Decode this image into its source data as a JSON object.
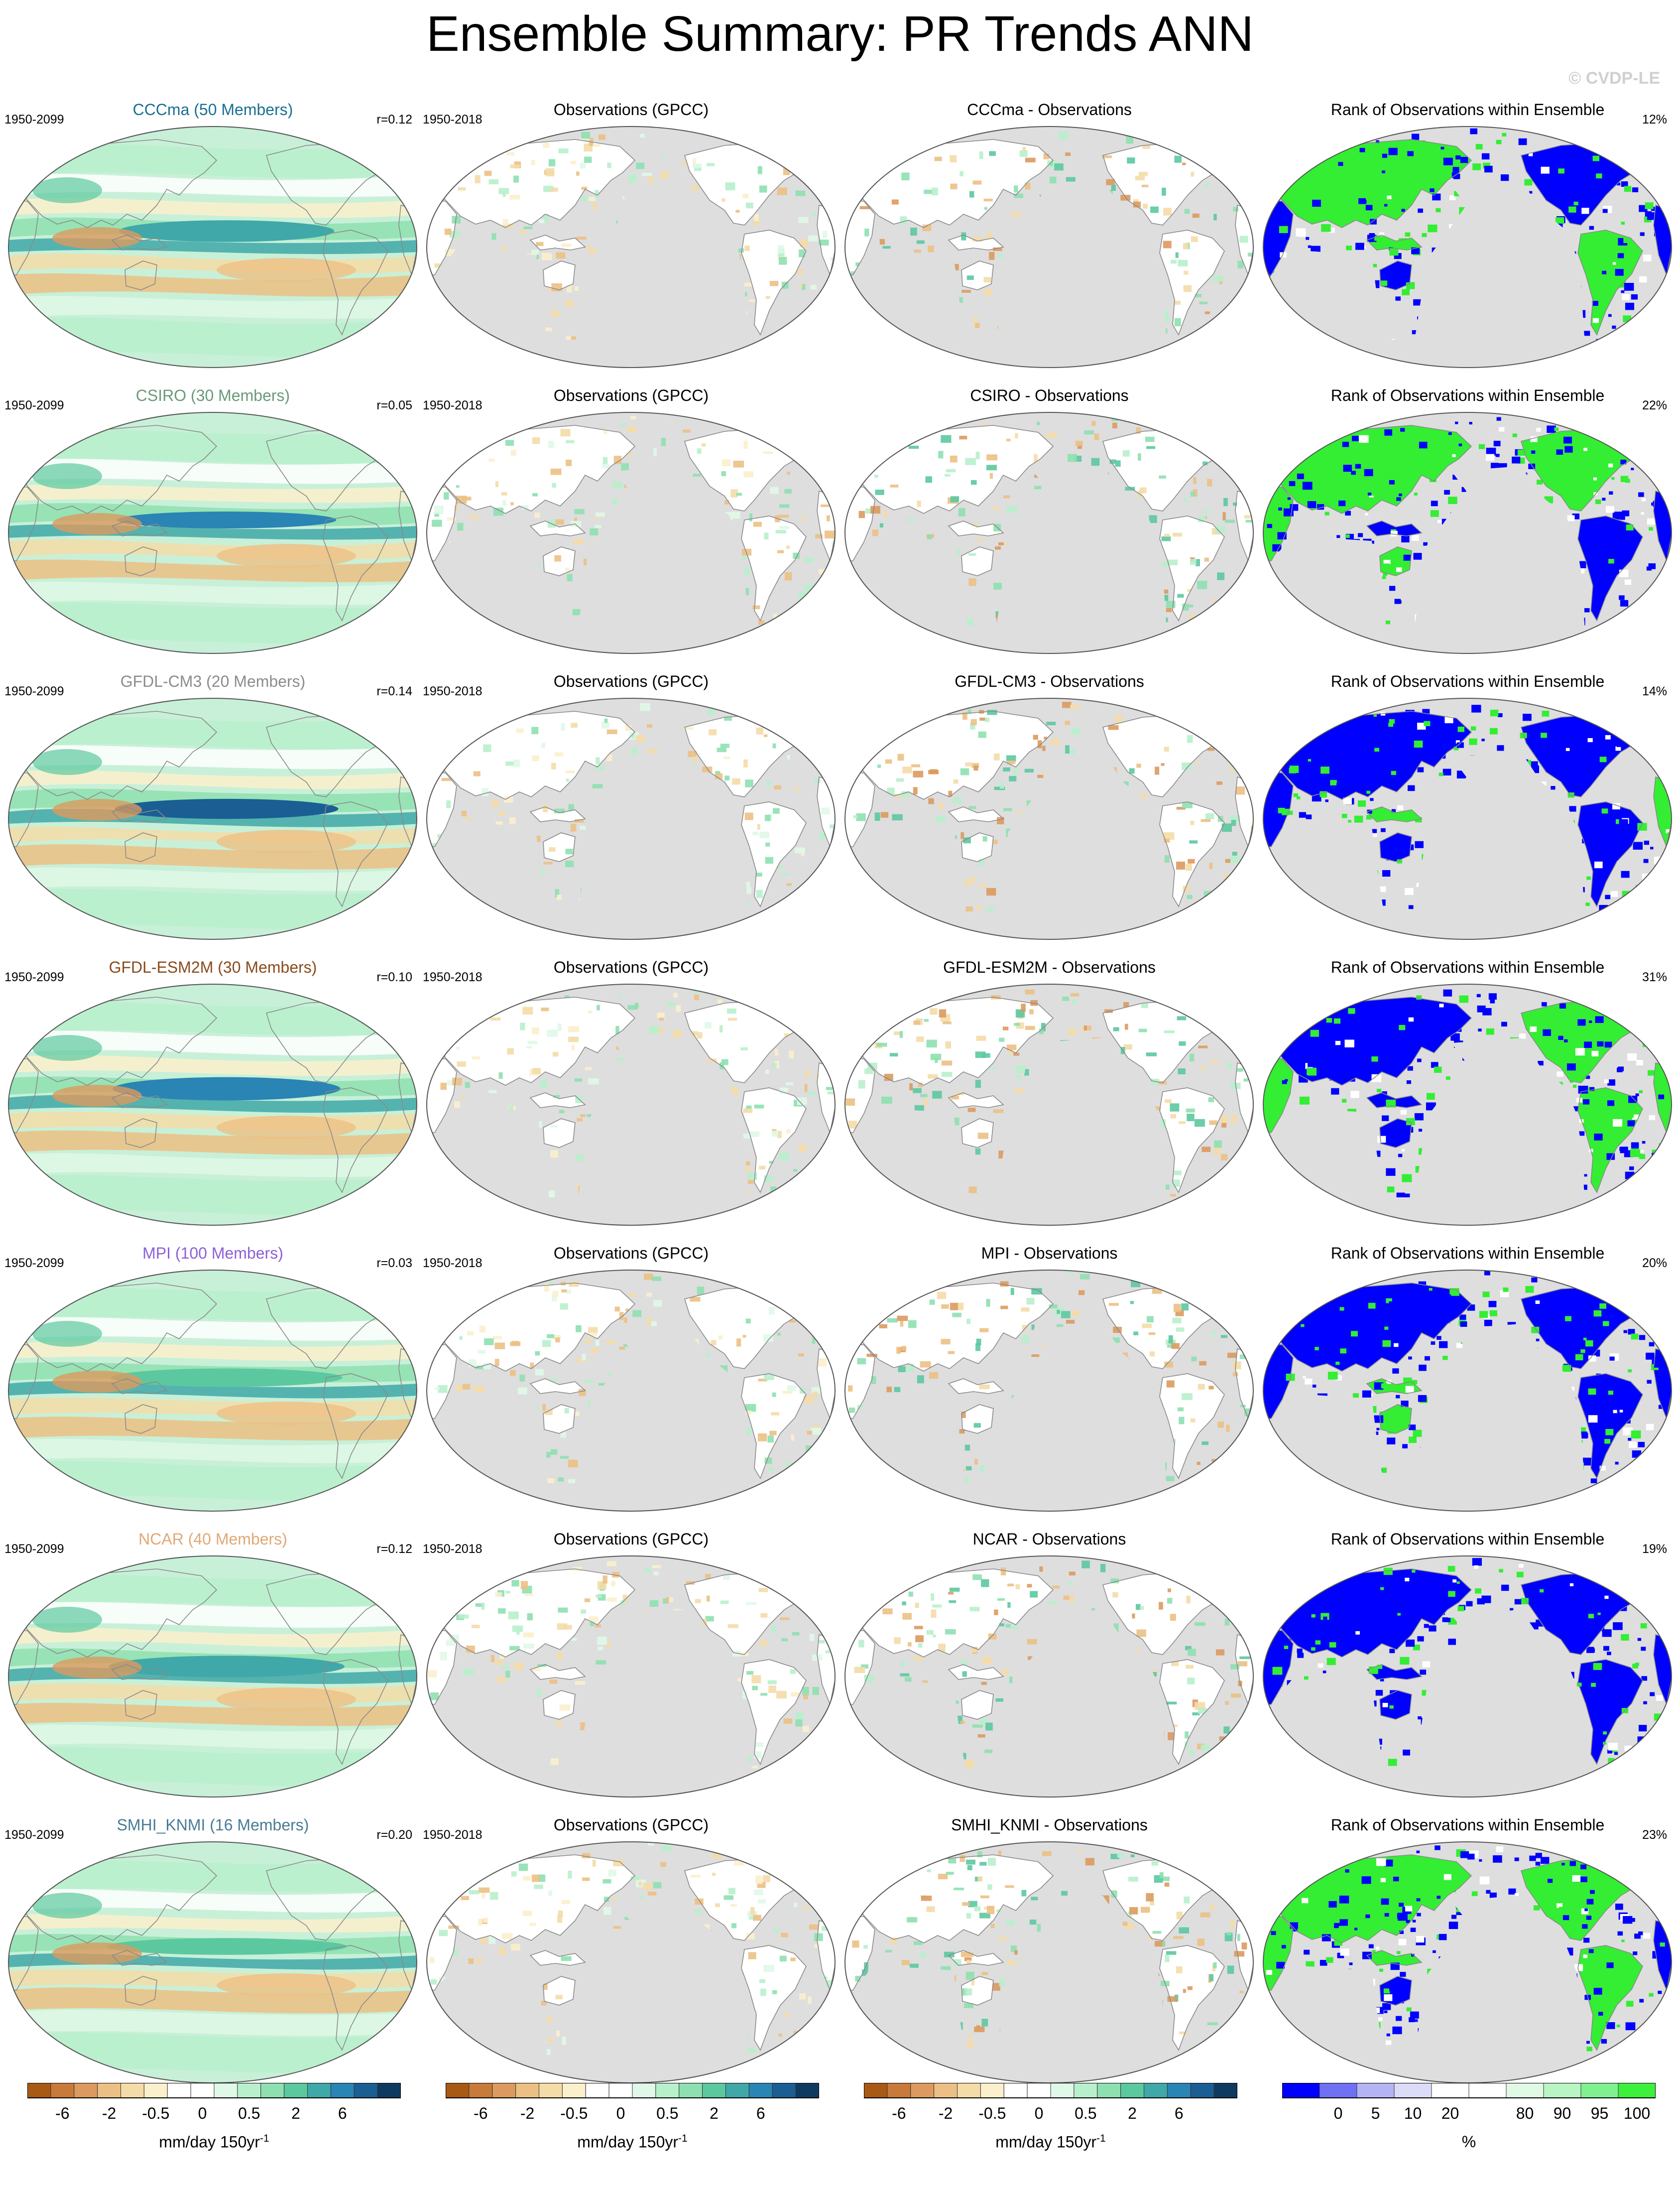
{
  "title": "Ensemble Summary: PR Trends ANN",
  "watermark": "© CVDP-LE",
  "rows": [
    {
      "model": "CCCma (50 Members)",
      "model_color": "#1a6f94",
      "left_period": "1950-2099",
      "corr": "r=0.12",
      "obs_period": "1950-2018",
      "obs_title": "Observations (GPCC)",
      "diff_title": "CCCma - Observations",
      "rank_title": "Rank of Observations within Ensemble",
      "rank_pct": "12%"
    },
    {
      "model": "CSIRO (30 Members)",
      "model_color": "#6a9a78",
      "left_period": "1950-2099",
      "corr": "r=0.05",
      "obs_period": "1950-2018",
      "obs_title": "Observations (GPCC)",
      "diff_title": "CSIRO - Observations",
      "rank_title": "Rank of Observations within Ensemble",
      "rank_pct": "22%"
    },
    {
      "model": "GFDL-CM3 (20 Members)",
      "model_color": "#8c8c8c",
      "left_period": "1950-2099",
      "corr": "r=0.14",
      "obs_period": "1950-2018",
      "obs_title": "Observations (GPCC)",
      "diff_title": "GFDL-CM3 - Observations",
      "rank_title": "Rank of Observations within Ensemble",
      "rank_pct": "14%"
    },
    {
      "model": "GFDL-ESM2M (30 Members)",
      "model_color": "#8a4a1c",
      "left_period": "1950-2099",
      "corr": "r=0.10",
      "obs_period": "1950-2018",
      "obs_title": "Observations (GPCC)",
      "diff_title": "GFDL-ESM2M - Observations",
      "rank_title": "Rank of Observations within Ensemble",
      "rank_pct": "31%"
    },
    {
      "model": "MPI (100 Members)",
      "model_color": "#8c60d8",
      "left_period": "1950-2099",
      "corr": "r=0.03",
      "obs_period": "1950-2018",
      "obs_title": "Observations (GPCC)",
      "diff_title": "MPI - Observations",
      "rank_title": "Rank of Observations within Ensemble",
      "rank_pct": "20%"
    },
    {
      "model": "NCAR (40 Members)",
      "model_color": "#e0a878",
      "left_period": "1950-2099",
      "corr": "r=0.12",
      "obs_period": "1950-2018",
      "obs_title": "Observations (GPCC)",
      "diff_title": "NCAR - Observations",
      "rank_title": "Rank of Observations within Ensemble",
      "rank_pct": "19%"
    },
    {
      "model": "SMHI_KNMI (16 Members)",
      "model_color": "#4a7c94",
      "left_period": "1950-2099",
      "corr": "r=0.20",
      "obs_period": "1950-2018",
      "obs_title": "Observations (GPCC)",
      "diff_title": "SMHI_KNMI - Observations",
      "rank_title": "Rank of Observations within Ensemble",
      "rank_pct": "23%"
    }
  ],
  "trend_colorbar": {
    "colors": [
      "#a85a14",
      "#c87a3a",
      "#dc9a5e",
      "#ecc084",
      "#f4dca8",
      "#fbf0cc",
      "#ffffff",
      "#ffffff",
      "#e0f8e8",
      "#b8f0cc",
      "#8ee0b0",
      "#5cc8a0",
      "#40a8a8",
      "#2a84b4",
      "#1a5e94",
      "#0e3a60"
    ],
    "tick_labels": [
      "-6",
      "-2",
      "-0.5",
      "0",
      "0.5",
      "2",
      "6"
    ],
    "unit": "mm/day 150yr",
    "unit_sup": "-1"
  },
  "rank_colorbar": {
    "colors": [
      "#0000ff",
      "#7070f4",
      "#b4b4f4",
      "#dcdcf8",
      "#ffffff",
      "#ffffff",
      "#e0fae6",
      "#b8f4c4",
      "#80f090",
      "#3cf03c"
    ],
    "tick_labels": [
      "0",
      "5",
      "10",
      "20",
      "80",
      "90",
      "95",
      "100"
    ],
    "unit": "%"
  },
  "colors": {
    "ocean_bg": "#dedede",
    "land_none": "#ffffff",
    "rank_low": "#0000ff",
    "rank_high": "#33ee33",
    "coast": "#8a8a8a"
  }
}
